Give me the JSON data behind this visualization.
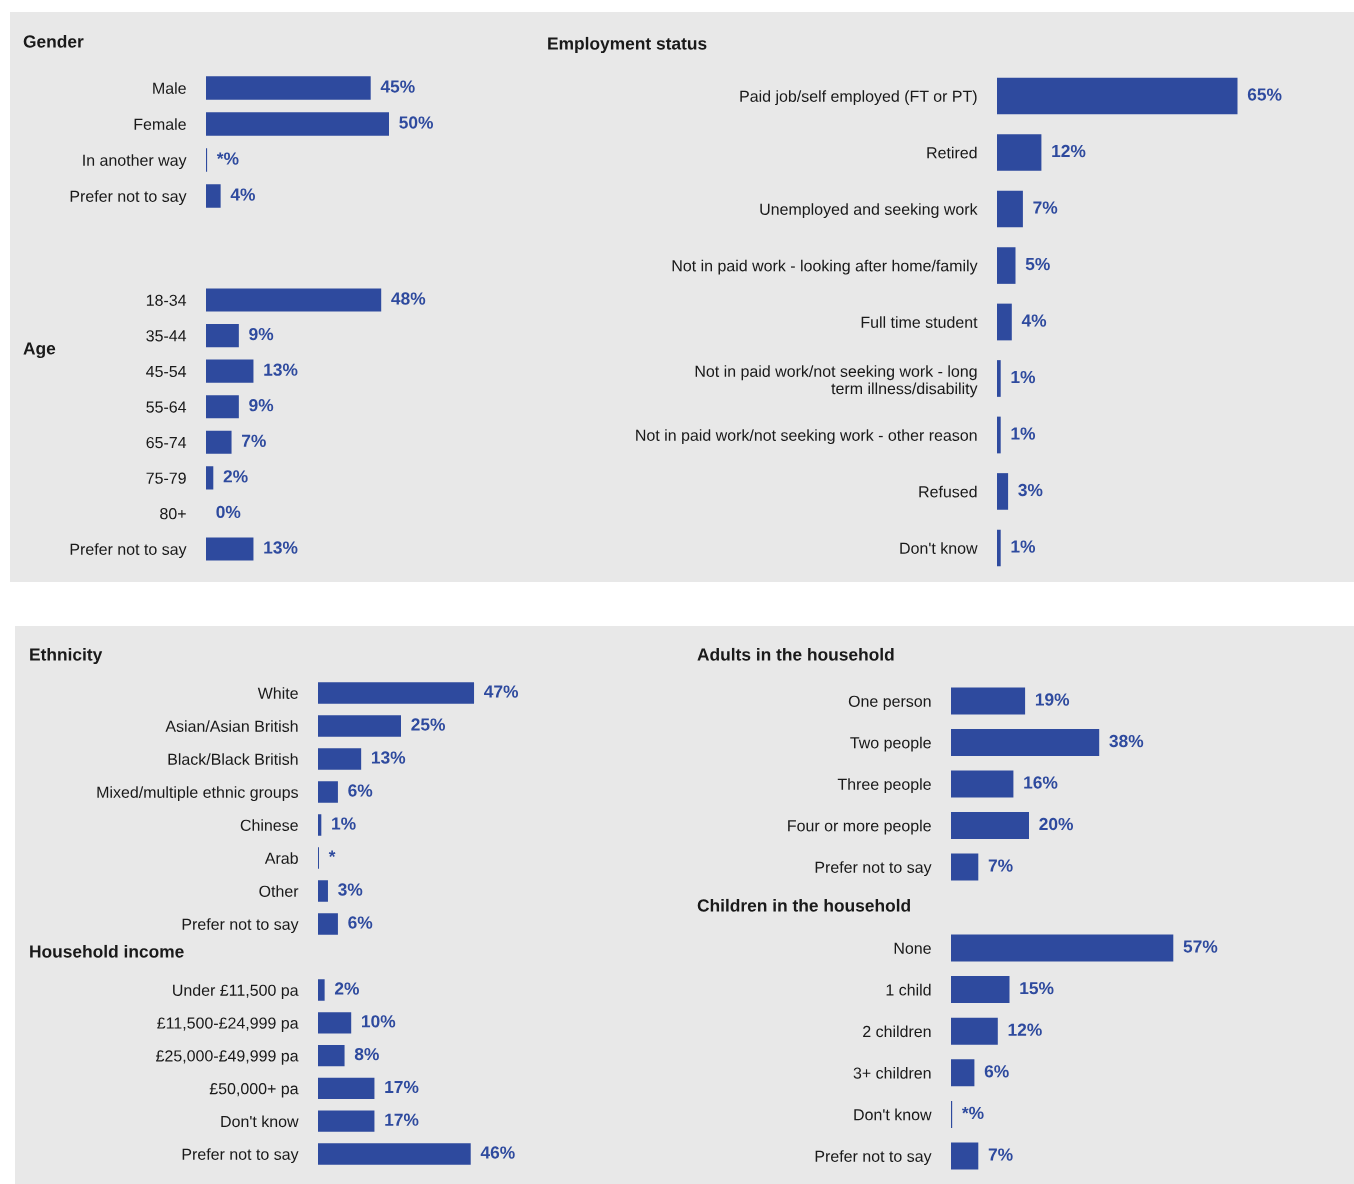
{
  "chart_data": [
    {
      "type": "bar",
      "orientation": "horizontal",
      "title": "Gender",
      "color": "#2e4a9e",
      "categories": [
        "Male",
        "Female",
        "In another way",
        "Prefer not to say"
      ],
      "values": [
        45,
        50,
        0.3,
        4
      ],
      "value_labels": [
        "45%",
        "50%",
        "*%",
        "4%"
      ]
    },
    {
      "type": "bar",
      "orientation": "horizontal",
      "title": "Age",
      "color": "#2e4a9e",
      "categories": [
        "18-34",
        "35-44",
        "45-54",
        "55-64",
        "65-74",
        "75-79",
        "80+",
        "Prefer not to say"
      ],
      "values": [
        48,
        9,
        13,
        9,
        7,
        2,
        0,
        13
      ],
      "value_labels": [
        "48%",
        "9%",
        "13%",
        "9%",
        "7%",
        "2%",
        "0%",
        "13%"
      ]
    },
    {
      "type": "bar",
      "orientation": "horizontal",
      "title": "Employment status",
      "color": "#2e4a9e",
      "categories": [
        "Paid job/self employed (FT or PT)",
        "Retired",
        "Unemployed and seeking work",
        "Not in paid work - looking after home/family",
        "Full time student",
        "Not in paid work/not seeking work - long term illness/disability",
        "Not in paid work/not seeking work - other reason",
        "Refused",
        "Don't know"
      ],
      "values": [
        65,
        12,
        7,
        5,
        4,
        1,
        1,
        3,
        1
      ],
      "value_labels": [
        "65%",
        "12%",
        "7%",
        "5%",
        "4%",
        "1%",
        "1%",
        "3%",
        "1%"
      ]
    },
    {
      "type": "bar",
      "orientation": "horizontal",
      "title": "Ethnicity",
      "color": "#2e4a9e",
      "categories": [
        "White",
        "Asian/Asian British",
        "Black/Black British",
        "Mixed/multiple ethnic groups",
        "Chinese",
        "Arab",
        "Other",
        "Prefer not to say"
      ],
      "values": [
        47,
        25,
        13,
        6,
        1,
        0.3,
        3,
        6
      ],
      "value_labels": [
        "47%",
        "25%",
        "13%",
        "6%",
        "1%",
        "*",
        "3%",
        "6%"
      ]
    },
    {
      "type": "bar",
      "orientation": "horizontal",
      "title": "Household income",
      "color": "#2e4a9e",
      "categories": [
        "Under £11,500 pa",
        "£11,500-£24,999 pa",
        "£25,000-£49,999 pa",
        "£50,000+ pa",
        "Don't know",
        "Prefer not to say"
      ],
      "values": [
        2,
        10,
        8,
        17,
        17,
        46
      ],
      "value_labels": [
        "2%",
        "10%",
        "8%",
        "17%",
        "17%",
        "46%"
      ]
    },
    {
      "type": "bar",
      "orientation": "horizontal",
      "title": "Adults in the household",
      "color": "#2e4a9e",
      "categories": [
        "One person",
        "Two people",
        "Three people",
        "Four or more people",
        "Prefer not to say"
      ],
      "values": [
        19,
        38,
        16,
        20,
        7
      ],
      "value_labels": [
        "19%",
        "38%",
        "16%",
        "20%",
        "7%"
      ]
    },
    {
      "type": "bar",
      "orientation": "horizontal",
      "title": "Children in the household",
      "color": "#2e4a9e",
      "categories": [
        "None",
        "1 child",
        "2 children",
        "3+ children",
        "Don't know",
        "Prefer not to say"
      ],
      "values": [
        57,
        15,
        12,
        6,
        0.3,
        7
      ],
      "value_labels": [
        "57%",
        "15%",
        "12%",
        "6%",
        "*%",
        "7%"
      ]
    }
  ]
}
